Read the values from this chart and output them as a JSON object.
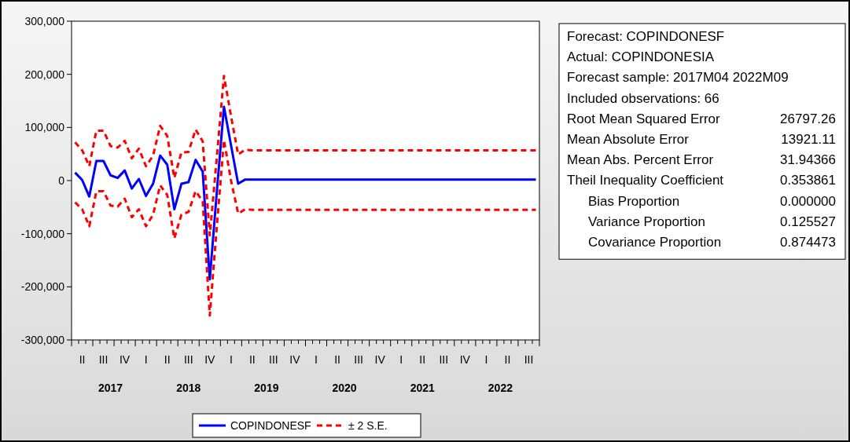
{
  "chart_data": [
    {
      "type": "line",
      "categories": [
        null,
        "II",
        null,
        null,
        "III",
        null,
        null,
        "IV",
        null,
        null,
        "I",
        null,
        null,
        "II",
        null,
        null,
        "III",
        null,
        null,
        "IV",
        null,
        null,
        "I",
        null,
        null,
        "II",
        null,
        null,
        "III",
        null,
        null,
        "IV",
        null,
        null,
        "I",
        null,
        null,
        "II",
        null,
        null,
        "III",
        null,
        null,
        "IV",
        null,
        null,
        "I",
        null,
        null,
        "II",
        null,
        null,
        "III",
        null,
        null,
        "IV",
        null,
        null,
        "I",
        null,
        null,
        "II",
        null,
        null,
        "III",
        null
      ],
      "series": [
        {
          "name": "COPINDONESF",
          "color": "#0000ff",
          "line_style": "solid",
          "values": [
            15000,
            1000,
            -30000,
            37000,
            37000,
            10000,
            5000,
            19000,
            -15000,
            3000,
            -29000,
            -6000,
            47000,
            30000,
            -54000,
            -6000,
            -3000,
            39000,
            17000,
            -186000,
            -20000,
            139000,
            66000,
            -6000,
            2000,
            2000,
            2000,
            2000,
            2000,
            2000,
            2000,
            2000,
            2000,
            2000,
            2000,
            2000,
            2000,
            2000,
            2000,
            2000,
            2000,
            2000,
            2000,
            2000,
            2000,
            2000,
            2000,
            2000,
            2000,
            2000,
            2000,
            2000,
            2000,
            2000,
            2000,
            2000,
            2000,
            2000,
            2000,
            2000,
            2000,
            2000,
            2000,
            2000,
            2000,
            2000
          ]
        },
        {
          "name": "± 2 S.E.",
          "color": "#ff0000",
          "line_style": "dashed",
          "values": [
            72000,
            57000,
            27000,
            94000,
            94000,
            65000,
            62000,
            75000,
            42000,
            60000,
            27000,
            47000,
            103000,
            84000,
            5000,
            53000,
            54000,
            96000,
            74000,
            -103000,
            45000,
            197000,
            121000,
            49000,
            58000,
            57000,
            57000,
            57000,
            57000,
            57000,
            57000,
            57000,
            57000,
            57000,
            57000,
            57000,
            57000,
            57000,
            57000,
            57000,
            57000,
            57000,
            57000,
            57000,
            57000,
            57000,
            57000,
            57000,
            57000,
            57000,
            57000,
            57000,
            57000,
            57000,
            57000,
            57000,
            57000,
            57000,
            57000,
            57000,
            57000,
            57000,
            57000,
            57000,
            57000,
            57000
          ]
        },
        {
          "color": "#ff0000",
          "line_style": "dashed",
          "values": [
            -41000,
            -54000,
            -86000,
            -20000,
            -20000,
            -47000,
            -49000,
            -34000,
            -69000,
            -54000,
            -86000,
            -64000,
            -9000,
            -27000,
            -109000,
            -64000,
            -59000,
            -20000,
            -39000,
            -254000,
            -85000,
            76000,
            0,
            -62000,
            -54000,
            -55000,
            -55000,
            -55000,
            -55000,
            -55000,
            -55000,
            -55000,
            -55000,
            -55000,
            -55000,
            -55000,
            -55000,
            -55000,
            -55000,
            -55000,
            -55000,
            -55000,
            -55000,
            -55000,
            -55000,
            -55000,
            -55000,
            -55000,
            -55000,
            -55000,
            -55000,
            -55000,
            -55000,
            -55000,
            -55000,
            -55000,
            -55000,
            -55000,
            -55000,
            -55000,
            -55000,
            -55000,
            -55000,
            -55000,
            -55000,
            -55000
          ]
        }
      ],
      "ylim": [
        -300000,
        300000
      ],
      "yticks": [
        {
          "value": -300000,
          "label": "-300,000"
        },
        {
          "value": -200000,
          "label": "-200,000"
        },
        {
          "value": -100000,
          "label": "-100,000"
        },
        0,
        {
          "value": 100000,
          "label": "100,000"
        },
        {
          "value": 200000,
          "label": "200,000"
        },
        {
          "value": 300000,
          "label": "300,000"
        }
      ],
      "annotations": [
        "2017",
        "2018",
        "2019",
        "2020",
        "2021",
        "2022"
      ],
      "grid": false,
      "legend": "bottom",
      "marker": "none"
    },
    {
      "type": "other",
      "annotations": [
        "Forecast: COPINDONESF",
        "Actual: COPINDONESIA",
        "Forecast sample: 2017M04 2022M09",
        "Included observations: 66",
        "Root Mean Squared Error\t26797.26",
        "Mean Absolute Error\t13921.11",
        "Mean Abs. Percent Error\t31.94366",
        "Theil Inequality Coefficient\t0.353861",
        "   Bias Proportion\t0.000000",
        "   Variance Proportion\t0.125527",
        "   Covariance Proportion\t0.874473"
      ]
    }
  ]
}
